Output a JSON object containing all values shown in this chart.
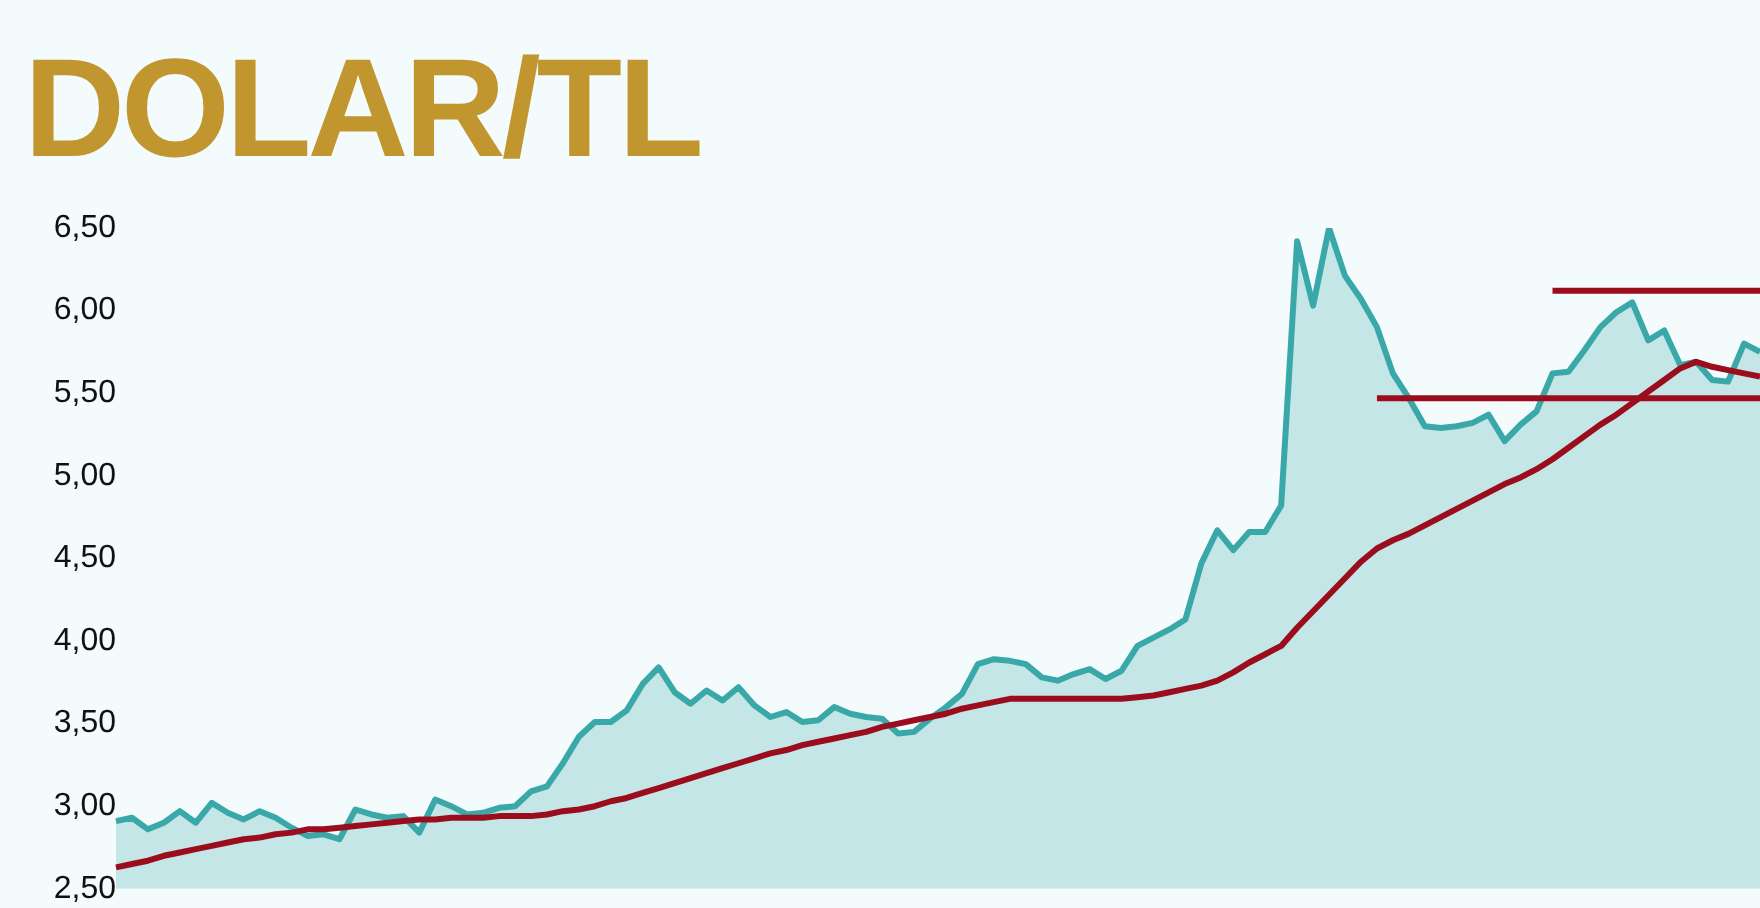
{
  "chart_data": {
    "type": "line",
    "title": "DOLAR/TL",
    "categories": [
      null,
      null,
      null,
      null,
      null,
      null,
      null,
      null,
      null,
      null,
      null,
      null,
      null,
      null,
      null,
      null,
      null,
      null,
      null,
      null,
      null,
      null,
      null,
      null,
      null,
      null,
      null,
      null,
      null,
      null,
      null,
      null,
      null,
      null,
      null,
      null,
      null,
      null,
      null,
      null,
      null,
      null,
      null,
      null,
      null,
      null,
      null,
      null,
      null,
      null,
      null,
      null,
      null,
      null,
      null,
      null,
      null,
      null,
      null,
      null,
      null,
      null,
      null,
      null,
      null,
      null,
      null,
      null,
      null,
      null,
      null,
      null,
      null,
      null,
      null,
      null,
      null,
      null,
      null,
      null,
      null,
      null,
      null,
      null,
      null,
      null,
      null,
      null,
      null,
      null,
      null,
      null,
      null,
      null,
      null,
      null,
      null,
      null,
      null,
      null,
      null,
      null,
      null,
      null
    ],
    "series": [
      {
        "type": "area",
        "color": "#3aa8a8",
        "values": [
          2.91,
          2.93,
          2.86,
          2.9,
          2.97,
          2.9,
          3.02,
          2.96,
          2.92,
          2.97,
          2.93,
          2.87,
          2.82,
          2.83,
          2.8,
          2.98,
          2.95,
          2.93,
          2.94,
          2.84,
          3.04,
          3.0,
          2.95,
          2.96,
          2.99,
          3.0,
          3.09,
          3.12,
          3.26,
          3.42,
          3.51,
          3.51,
          3.58,
          3.74,
          3.84,
          3.69,
          3.62,
          3.7,
          3.64,
          3.72,
          3.61,
          3.54,
          3.57,
          3.51,
          3.52,
          3.6,
          3.56,
          3.54,
          3.53,
          3.44,
          3.45,
          3.53,
          3.6,
          3.68,
          3.86,
          3.89,
          3.88,
          3.86,
          3.78,
          3.76,
          3.8,
          3.83,
          3.77,
          3.82,
          3.97,
          4.02,
          4.07,
          4.13,
          4.47,
          4.67,
          4.55,
          4.66,
          4.66,
          4.82,
          6.42,
          6.03,
          6.5,
          6.21,
          6.07,
          5.9,
          5.62,
          5.47,
          5.3,
          5.29,
          5.3,
          5.32,
          5.37,
          5.21,
          5.31,
          5.39,
          5.62,
          5.63,
          5.76,
          5.9,
          5.99,
          6.05,
          5.82,
          5.88,
          5.67,
          5.69,
          5.58,
          5.57,
          5.8,
          5.75
        ]
      },
      {
        "color": "#9b0d1c",
        "values": [
          2.63,
          2.65,
          2.67,
          2.7,
          2.72,
          2.74,
          2.76,
          2.78,
          2.8,
          2.81,
          2.83,
          2.84,
          2.86,
          2.86,
          2.87,
          2.88,
          2.89,
          2.9,
          2.91,
          2.92,
          2.92,
          2.93,
          2.93,
          2.93,
          2.94,
          2.94,
          2.94,
          2.95,
          2.97,
          2.98,
          3.0,
          3.03,
          3.05,
          3.08,
          3.11,
          3.14,
          3.17,
          3.2,
          3.23,
          3.26,
          3.29,
          3.32,
          3.34,
          3.37,
          3.39,
          3.41,
          3.43,
          3.45,
          3.48,
          3.5,
          3.52,
          3.54,
          3.56,
          3.59,
          3.61,
          3.63,
          3.65,
          3.65,
          3.65,
          3.65,
          3.65,
          3.65,
          3.65,
          3.65,
          3.66,
          3.67,
          3.69,
          3.71,
          3.73,
          3.76,
          3.81,
          3.87,
          3.92,
          3.97,
          4.08,
          4.18,
          4.28,
          4.38,
          4.48,
          4.56,
          4.61,
          4.65,
          4.7,
          4.75,
          4.8,
          4.85,
          4.9,
          4.95,
          4.99,
          5.04,
          5.1,
          5.17,
          5.24,
          5.31,
          5.37,
          5.44,
          5.51,
          5.58,
          5.65,
          5.69,
          5.66,
          5.64,
          5.62,
          5.6
        ]
      },
      {
        "color": "#9b0d1c",
        "values": [
          null,
          null,
          null,
          null,
          null,
          null,
          null,
          null,
          null,
          null,
          null,
          null,
          null,
          null,
          null,
          null,
          null,
          null,
          null,
          null,
          null,
          null,
          null,
          null,
          null,
          null,
          null,
          null,
          null,
          null,
          null,
          null,
          null,
          null,
          null,
          null,
          null,
          null,
          null,
          null,
          null,
          null,
          null,
          null,
          null,
          null,
          null,
          null,
          null,
          null,
          null,
          null,
          null,
          null,
          null,
          null,
          null,
          null,
          null,
          null,
          null,
          null,
          null,
          null,
          null,
          null,
          null,
          null,
          null,
          null,
          null,
          null,
          null,
          null,
          null,
          null,
          null,
          null,
          null,
          5.47,
          5.47,
          5.47,
          5.47,
          5.47,
          5.47,
          5.47,
          5.47,
          5.47,
          5.47,
          5.47,
          5.47,
          5.47,
          5.47,
          5.47,
          5.47,
          5.47,
          5.47,
          5.47,
          5.47,
          5.47,
          5.47,
          5.47,
          5.47,
          5.47
        ]
      },
      {
        "color": "#9b0d1c",
        "values": [
          null,
          null,
          null,
          null,
          null,
          null,
          null,
          null,
          null,
          null,
          null,
          null,
          null,
          null,
          null,
          null,
          null,
          null,
          null,
          null,
          null,
          null,
          null,
          null,
          null,
          null,
          null,
          null,
          null,
          null,
          null,
          null,
          null,
          null,
          null,
          null,
          null,
          null,
          null,
          null,
          null,
          null,
          null,
          null,
          null,
          null,
          null,
          null,
          null,
          null,
          null,
          null,
          null,
          null,
          null,
          null,
          null,
          null,
          null,
          null,
          null,
          null,
          null,
          null,
          null,
          null,
          null,
          null,
          null,
          null,
          null,
          null,
          null,
          null,
          null,
          null,
          null,
          null,
          null,
          null,
          null,
          null,
          null,
          null,
          null,
          null,
          null,
          null,
          null,
          null,
          6.12,
          6.12,
          6.12,
          6.12,
          6.12,
          6.12,
          6.12,
          6.12,
          6.12,
          6.12,
          6.12,
          6.12,
          6.12,
          6.12
        ]
      }
    ],
    "ylim": [
      2.5,
      6.5
    ],
    "yticks": [
      {
        "value": 2.5,
        "label": "2,50"
      },
      {
        "value": 3,
        "label": "3,00"
      },
      {
        "value": 3.5,
        "label": "3,50"
      },
      {
        "value": 4,
        "label": "4,00"
      },
      {
        "value": 4.5,
        "label": "4,50"
      },
      {
        "value": 5,
        "label": "5,00"
      },
      {
        "value": 5.5,
        "label": "5,50"
      },
      {
        "value": 6,
        "label": "6,00"
      },
      {
        "value": 6.5,
        "label": "6,50"
      }
    ],
    "tick_labels": "y",
    "grid": false,
    "legend": false
  }
}
